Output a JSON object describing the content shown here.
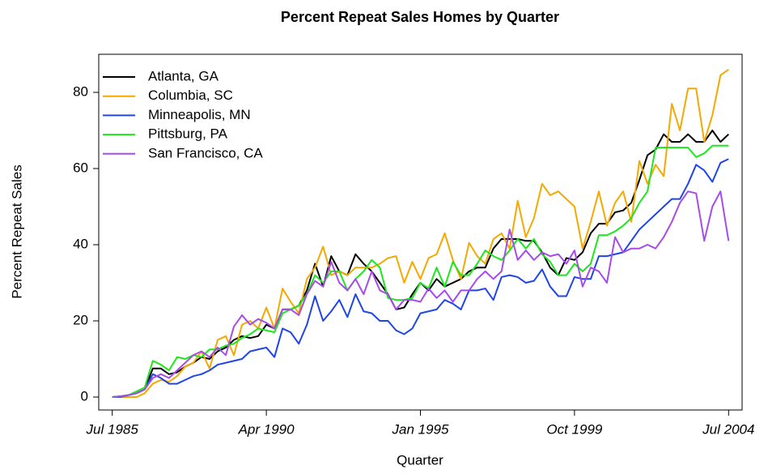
{
  "chart_data": {
    "type": "line",
    "title": "Percent Repeat Sales Homes by Quarter",
    "x_label": "Quarter",
    "y_label": "Percent Repeat Sales",
    "x": [
      "1985-07",
      "1985-10",
      "1986-01",
      "1986-04",
      "1986-07",
      "1986-10",
      "1987-01",
      "1987-04",
      "1987-07",
      "1987-10",
      "1988-01",
      "1988-04",
      "1988-07",
      "1988-10",
      "1989-01",
      "1989-04",
      "1989-07",
      "1989-10",
      "1990-01",
      "1990-04",
      "1990-07",
      "1990-10",
      "1991-01",
      "1991-04",
      "1991-07",
      "1991-10",
      "1992-01",
      "1992-04",
      "1992-07",
      "1992-10",
      "1993-01",
      "1993-04",
      "1993-07",
      "1993-10",
      "1994-01",
      "1994-04",
      "1994-07",
      "1994-10",
      "1995-01",
      "1995-04",
      "1995-07",
      "1995-10",
      "1996-01",
      "1996-04",
      "1996-07",
      "1996-10",
      "1997-01",
      "1997-04",
      "1997-07",
      "1997-10",
      "1998-01",
      "1998-04",
      "1998-07",
      "1998-10",
      "1999-01",
      "1999-04",
      "1999-07",
      "1999-10",
      "2000-01",
      "2000-04",
      "2000-07",
      "2000-10",
      "2001-01",
      "2001-04",
      "2001-07",
      "2001-10",
      "2002-01",
      "2002-04",
      "2002-07",
      "2002-10",
      "2003-01",
      "2003-04",
      "2003-07",
      "2003-10",
      "2004-01",
      "2004-04",
      "2004-07"
    ],
    "series": [
      {
        "name": "Atlanta, GA",
        "color": "#000000",
        "values": [
          0,
          0.2,
          0.5,
          1,
          2,
          7.5,
          7.5,
          6,
          6.5,
          8,
          9,
          10.5,
          10,
          12,
          13,
          15,
          16,
          15.5,
          16,
          19,
          18,
          23,
          23,
          24,
          28,
          35,
          29,
          37,
          33,
          32,
          37.5,
          35,
          33,
          30,
          27,
          23,
          23.5,
          27,
          30,
          28,
          31,
          29,
          30,
          31,
          33,
          34,
          34,
          39,
          41.5,
          41.5,
          41.5,
          41,
          41,
          38,
          34,
          32,
          36.5,
          36,
          38,
          43,
          45.5,
          45.5,
          48.5,
          49,
          51,
          57,
          63.5,
          65,
          69,
          67,
          67,
          69,
          67,
          67,
          70,
          67,
          69
        ]
      },
      {
        "name": "Columbia, SC",
        "color": "#f5a800",
        "values": [
          0,
          0,
          0,
          0,
          1,
          3.5,
          4.5,
          4,
          5.5,
          8,
          9,
          12,
          7.5,
          15,
          16,
          11,
          19,
          20,
          18,
          23.5,
          18,
          28.5,
          25,
          22,
          31,
          34,
          39.5,
          32,
          33,
          32,
          34,
          34,
          34,
          35,
          36.5,
          37,
          30,
          35.5,
          31,
          36.5,
          37.5,
          43,
          36,
          31,
          40.5,
          37,
          35,
          41.5,
          43,
          39,
          51.5,
          42,
          47,
          56,
          53,
          54,
          52,
          50,
          39,
          46,
          54,
          45,
          51,
          54,
          46,
          62,
          56,
          61,
          58,
          77,
          70,
          81,
          81,
          67,
          74,
          84.5,
          86
        ]
      },
      {
        "name": "Minneapolis, MN",
        "color": "#1f45e8",
        "values": [
          0,
          0,
          0.5,
          1,
          2,
          6,
          5,
          3.5,
          3.5,
          4.5,
          5.5,
          6,
          7,
          8.5,
          9,
          9.5,
          10,
          12,
          12.5,
          13,
          10.5,
          18,
          17,
          14,
          19,
          26.5,
          20,
          22.5,
          25.5,
          21,
          27,
          22.5,
          22,
          20,
          20,
          17.5,
          16.5,
          18,
          22,
          22.5,
          23,
          25.5,
          24.5,
          23,
          28,
          28,
          28.5,
          25.5,
          31.5,
          32,
          31.5,
          30,
          30.5,
          33.5,
          29,
          26.5,
          26.5,
          31.5,
          31,
          31,
          37,
          37,
          37.5,
          38,
          41,
          44,
          46,
          48,
          50,
          52,
          52,
          56,
          61,
          59.5,
          56.5,
          61.5,
          62.5
        ]
      },
      {
        "name": "Pittsburg, PA",
        "color": "#1ee61e",
        "values": [
          0,
          0.2,
          0.5,
          1.5,
          2.5,
          9.5,
          8.5,
          7,
          10.5,
          10,
          11,
          10.5,
          12.5,
          12.5,
          13.5,
          14,
          15.5,
          16.5,
          18,
          17.5,
          17,
          22,
          23,
          24,
          27,
          32,
          30,
          33,
          33,
          28,
          31,
          33,
          36,
          34,
          26,
          25.5,
          25.5,
          26,
          30,
          28.5,
          34,
          29,
          35.5,
          32,
          32,
          35,
          38.5,
          37,
          36,
          38.5,
          41.5,
          39,
          41.5,
          37.5,
          35.5,
          32,
          32,
          35,
          33,
          35,
          42.5,
          42.5,
          43.5,
          45,
          47,
          51,
          54,
          65.5,
          65.5,
          65.5,
          65.5,
          65.5,
          63,
          64,
          66,
          66,
          66
        ]
      },
      {
        "name": "San Francisco, CA",
        "color": "#a64ce8",
        "values": [
          0,
          0.2,
          0.5,
          1,
          2,
          5,
          6,
          5,
          7,
          9,
          11,
          12,
          10.5,
          13,
          11,
          18.5,
          21.5,
          19,
          20.5,
          19.5,
          18,
          23,
          23,
          21.5,
          27,
          30.5,
          29,
          35.5,
          30,
          28,
          31,
          27,
          33,
          28,
          27,
          23,
          25.5,
          25.5,
          25,
          28.5,
          26,
          28,
          25,
          28,
          28,
          31,
          33,
          31,
          33,
          44,
          36,
          38.5,
          36,
          38,
          37,
          37.5,
          35,
          38.5,
          29,
          34,
          33,
          30,
          42,
          38,
          39,
          39,
          40,
          39,
          42,
          46,
          51,
          54,
          53.5,
          41,
          50,
          54,
          41
        ]
      }
    ],
    "xlim": [
      "1985-02",
      "2004-12"
    ],
    "xticks": [
      {
        "value": "1985-07",
        "label": "Jul 1985"
      },
      {
        "value": "1990-04",
        "label": "Apr 1990"
      },
      {
        "value": "1995-01",
        "label": "Jan 1995"
      },
      {
        "value": "1999-10",
        "label": "Oct 1999"
      },
      {
        "value": "2004-07",
        "label": "Jul 2004"
      }
    ],
    "ylim": [
      -3.4,
      90
    ],
    "yticks": [
      0,
      20,
      40,
      60,
      80
    ],
    "grid": false,
    "legend": "top-left"
  }
}
